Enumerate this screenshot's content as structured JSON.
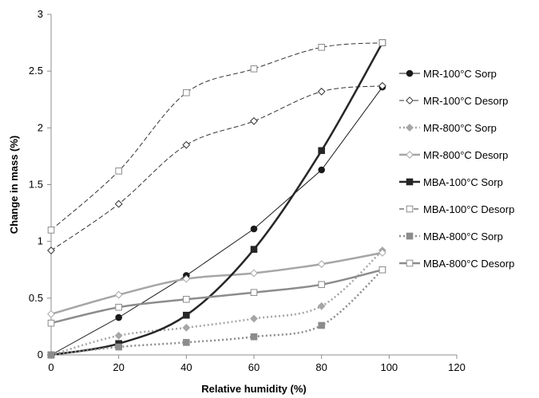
{
  "chart_data": {
    "type": "line",
    "title": "",
    "xlabel": "Relative humidity (%)",
    "ylabel": "Change in mass (%)",
    "xlim": [
      0,
      120
    ],
    "ylim": [
      0,
      3
    ],
    "x_ticks": [
      "0",
      "20",
      "40",
      "60",
      "80",
      "100",
      "120"
    ],
    "y_ticks": [
      "0",
      "0.5",
      "1",
      "1.5",
      "2",
      "2.5",
      "3"
    ],
    "grid": false,
    "legend_position": "right",
    "series": [
      {
        "name": "MR-100°C Sorp",
        "color": "#1a1a1a",
        "dash": "solid",
        "marker": "circle-filled",
        "smooth": false,
        "stroke_width": "thin",
        "points": [
          [
            0,
            0
          ],
          [
            20,
            0.33
          ],
          [
            40,
            0.7
          ],
          [
            60,
            1.11
          ],
          [
            80,
            1.63
          ],
          [
            98,
            2.36
          ]
        ]
      },
      {
        "name": "MR-100°C Desorp",
        "color": "#333333",
        "dash": "dashed",
        "marker": "diamond-open",
        "smooth": true,
        "stroke_width": "thin",
        "points": [
          [
            0,
            0.92
          ],
          [
            20,
            1.33
          ],
          [
            40,
            1.85
          ],
          [
            60,
            2.06
          ],
          [
            80,
            2.32
          ],
          [
            98,
            2.37
          ]
        ]
      },
      {
        "name": "MR-800°C Sorp",
        "color": "#a6a6a6",
        "dash": "dotted",
        "marker": "diamond-filled",
        "smooth": true,
        "stroke_width": "thick",
        "points": [
          [
            0,
            0
          ],
          [
            20,
            0.17
          ],
          [
            40,
            0.24
          ],
          [
            60,
            0.32
          ],
          [
            80,
            0.43
          ],
          [
            98,
            0.92
          ]
        ]
      },
      {
        "name": "MR-800°C Desorp",
        "color": "#a6a6a6",
        "dash": "solid",
        "marker": "diamond-open",
        "smooth": true,
        "stroke_width": "thick",
        "points": [
          [
            0,
            0.36
          ],
          [
            20,
            0.53
          ],
          [
            40,
            0.67
          ],
          [
            60,
            0.72
          ],
          [
            80,
            0.8
          ],
          [
            98,
            0.9
          ]
        ]
      },
      {
        "name": "MBA-100°C Sorp",
        "color": "#262626",
        "dash": "solid",
        "marker": "square-filled",
        "smooth": true,
        "stroke_width": "thick",
        "points": [
          [
            0,
            0
          ],
          [
            20,
            0.1
          ],
          [
            40,
            0.35
          ],
          [
            60,
            0.93
          ],
          [
            80,
            1.8
          ],
          [
            98,
            2.75
          ]
        ]
      },
      {
        "name": "MBA-100°C Desorp",
        "color": "#333333",
        "dash": "dashed",
        "marker": "square-open-gray",
        "smooth": true,
        "stroke_width": "thin",
        "points": [
          [
            0,
            1.1
          ],
          [
            20,
            1.62
          ],
          [
            40,
            2.31
          ],
          [
            60,
            2.52
          ],
          [
            80,
            2.71
          ],
          [
            98,
            2.75
          ]
        ]
      },
      {
        "name": "MBA-800°C Sorp",
        "color": "#8c8c8c",
        "dash": "dotted",
        "marker": "square-filled",
        "smooth": true,
        "stroke_width": "thick",
        "points": [
          [
            0,
            0
          ],
          [
            20,
            0.07
          ],
          [
            40,
            0.11
          ],
          [
            60,
            0.16
          ],
          [
            80,
            0.26
          ],
          [
            98,
            0.75
          ]
        ]
      },
      {
        "name": "MBA-800°C Desorp",
        "color": "#8c8c8c",
        "dash": "solid",
        "marker": "square-open",
        "smooth": true,
        "stroke_width": "thick",
        "points": [
          [
            0,
            0.28
          ],
          [
            20,
            0.42
          ],
          [
            40,
            0.49
          ],
          [
            60,
            0.55
          ],
          [
            80,
            0.62
          ],
          [
            98,
            0.75
          ]
        ]
      }
    ]
  }
}
